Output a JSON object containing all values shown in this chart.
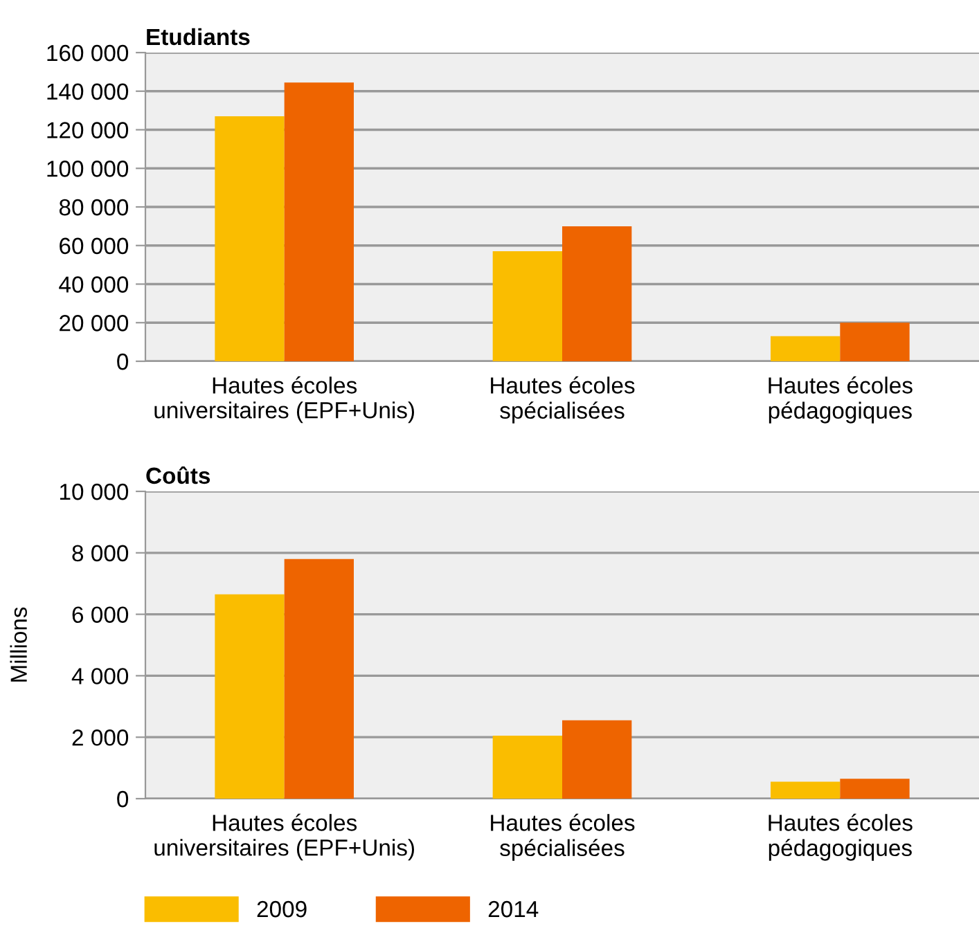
{
  "chart_data": [
    {
      "type": "bar",
      "title": "Etudiants",
      "categories": [
        "Hautes écoles\nuniversitaires (EPF+Unis)",
        "Hautes écoles\nspécialisées",
        "Hautes écoles\npédagogiques"
      ],
      "series": [
        {
          "name": "2009",
          "color": "#fabd00",
          "values": [
            127000,
            57000,
            13000
          ]
        },
        {
          "name": "2014",
          "color": "#ee6400",
          "values": [
            144500,
            70000,
            20000
          ]
        }
      ],
      "ylim": [
        0,
        160000
      ],
      "yticks": [
        {
          "value": 0,
          "label": "0"
        },
        {
          "value": 20000,
          "label": "20 000"
        },
        {
          "value": 40000,
          "label": "40 000"
        },
        {
          "value": 60000,
          "label": "60 000"
        },
        {
          "value": 80000,
          "label": "80 000"
        },
        {
          "value": 100000,
          "label": "100 000"
        },
        {
          "value": 120000,
          "label": "120 000"
        },
        {
          "value": 140000,
          "label": "140 000"
        },
        {
          "value": 160000,
          "label": "160 000"
        }
      ],
      "grid": "y",
      "legend": "bottom left"
    },
    {
      "type": "bar",
      "title": "Coûts",
      "ylabel": "Millions",
      "categories": [
        "Hautes écoles\nuniversitaires (EPF+Unis)",
        "Hautes écoles\nspécialisées",
        "Hautes écoles\npédagogiques"
      ],
      "series": [
        {
          "name": "2009",
          "color": "#fabd00",
          "values": [
            6650,
            2050,
            550
          ]
        },
        {
          "name": "2014",
          "color": "#ee6400",
          "values": [
            7800,
            2550,
            650
          ]
        }
      ],
      "ylim": [
        0,
        10000
      ],
      "yticks": [
        {
          "value": 0,
          "label": "0"
        },
        {
          "value": 2000,
          "label": "2 000"
        },
        {
          "value": 4000,
          "label": "4 000"
        },
        {
          "value": 6000,
          "label": "6 000"
        },
        {
          "value": 8000,
          "label": "8 000"
        },
        {
          "value": 10000,
          "label": "10 000"
        }
      ],
      "grid": "y"
    }
  ]
}
